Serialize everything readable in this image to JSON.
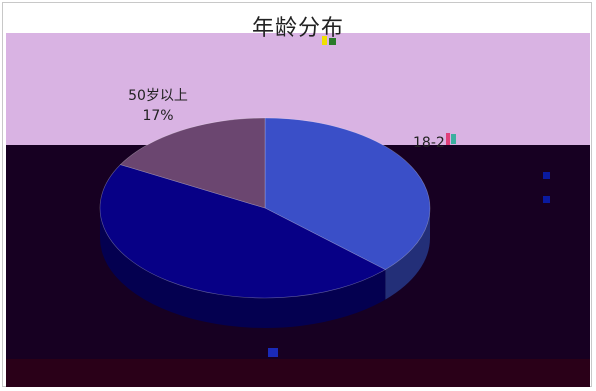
{
  "colors": {
    "background": "#ffffff",
    "band_lilac": "#d9b3e3",
    "band_dark": "#170022",
    "band_maroon": "#2a0018",
    "slice_blue": "#3a4fc8",
    "slice_navy": "#070086",
    "slice_purple": "#6b4670",
    "legend_swatch": "#0a1aa0"
  },
  "chart_data": {
    "type": "pie",
    "style": "3d",
    "title": "年龄分布",
    "slices": [
      {
        "label": "18-2",
        "value": 37,
        "color": "#3a4fc8",
        "visible_label": "18-2"
      },
      {
        "label": "",
        "value": 46,
        "color": "#070086",
        "visible_label": ""
      },
      {
        "label": "50岁以上",
        "value": 17,
        "color": "#6b4670",
        "visible_label": "50岁以上",
        "percent_label": "17%"
      }
    ],
    "legend_placement": "right"
  }
}
